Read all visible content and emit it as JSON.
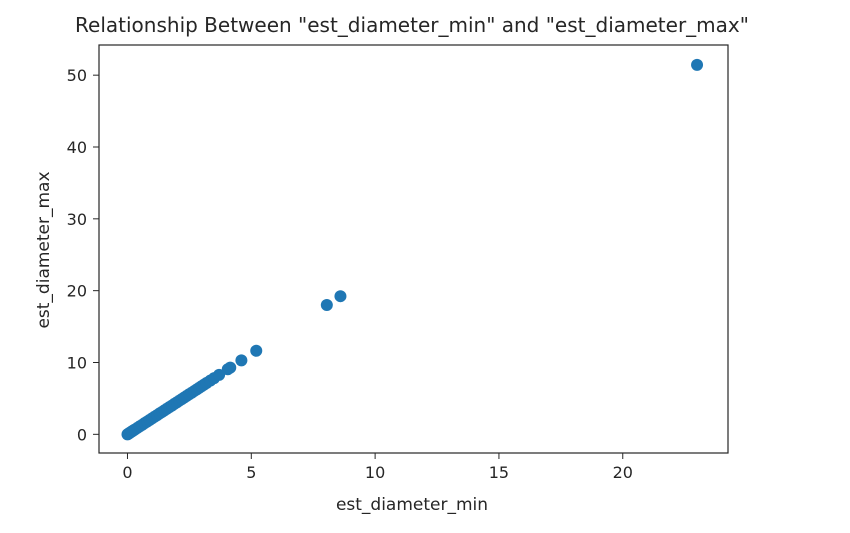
{
  "chart_data": {
    "type": "scatter",
    "title": "Relationship Between \"est_diameter_min\" and \"est_diameter_max\"",
    "xlabel": "est_diameter_min",
    "ylabel": "est_diameter_max",
    "xlim": [
      -1.15,
      24.25
    ],
    "ylim": [
      -2.6,
      54.2
    ],
    "xticks": [
      0,
      5,
      10,
      15,
      20
    ],
    "yticks": [
      0,
      10,
      20,
      30,
      40,
      50
    ],
    "grid": false,
    "color": "#1f77b4",
    "points": [
      [
        0.0,
        0.0
      ],
      [
        0.03,
        0.07
      ],
      [
        0.06,
        0.13
      ],
      [
        0.1,
        0.22
      ],
      [
        0.15,
        0.34
      ],
      [
        0.2,
        0.45
      ],
      [
        0.25,
        0.56
      ],
      [
        0.3,
        0.67
      ],
      [
        0.4,
        0.89
      ],
      [
        0.5,
        1.12
      ],
      [
        0.6,
        1.34
      ],
      [
        0.7,
        1.57
      ],
      [
        0.8,
        1.79
      ],
      [
        0.9,
        2.01
      ],
      [
        1.0,
        2.24
      ],
      [
        1.1,
        2.46
      ],
      [
        1.2,
        2.68
      ],
      [
        1.3,
        2.91
      ],
      [
        1.4,
        3.13
      ],
      [
        1.5,
        3.35
      ],
      [
        1.6,
        3.58
      ],
      [
        1.7,
        3.8
      ],
      [
        1.8,
        4.02
      ],
      [
        1.9,
        4.25
      ],
      [
        2.0,
        4.47
      ],
      [
        2.1,
        4.7
      ],
      [
        2.2,
        4.92
      ],
      [
        2.3,
        5.14
      ],
      [
        2.4,
        5.37
      ],
      [
        2.5,
        5.59
      ],
      [
        2.6,
        5.81
      ],
      [
        2.7,
        6.04
      ],
      [
        2.8,
        6.26
      ],
      [
        2.9,
        6.48
      ],
      [
        3.0,
        6.71
      ],
      [
        3.1,
        6.93
      ],
      [
        3.2,
        7.16
      ],
      [
        3.35,
        7.49
      ],
      [
        3.5,
        7.83
      ],
      [
        3.7,
        8.27
      ],
      [
        4.05,
        9.06
      ],
      [
        4.15,
        9.28
      ],
      [
        4.6,
        10.29
      ],
      [
        5.2,
        11.63
      ],
      [
        8.05,
        18.0
      ],
      [
        8.6,
        19.23
      ],
      [
        23.0,
        51.43
      ]
    ]
  }
}
